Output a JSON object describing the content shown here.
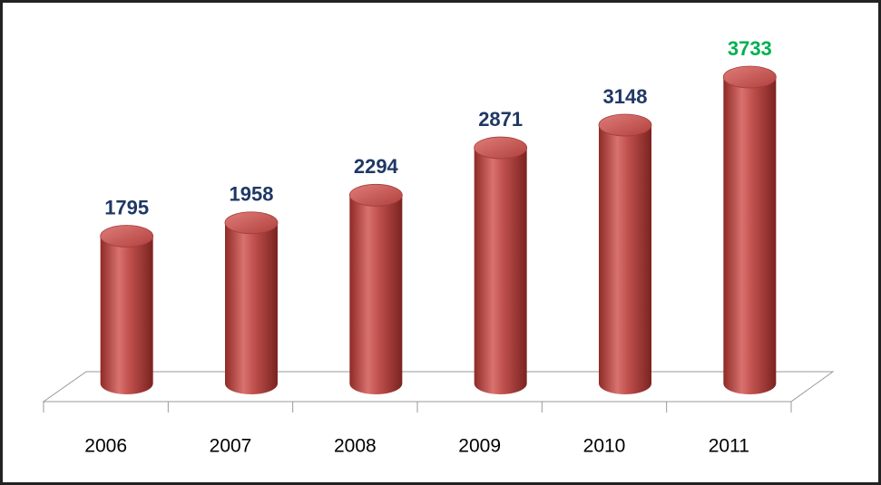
{
  "chart_data": {
    "type": "bar",
    "categories": [
      "2006",
      "2007",
      "2008",
      "2009",
      "2010",
      "2011"
    ],
    "values": [
      1795,
      1958,
      2294,
      2871,
      3148,
      3733
    ],
    "color": "#c0504d",
    "label_colors": [
      "#1f3864",
      "#1f3864",
      "#1f3864",
      "#1f3864",
      "#1f3864",
      "#00b050"
    ]
  }
}
